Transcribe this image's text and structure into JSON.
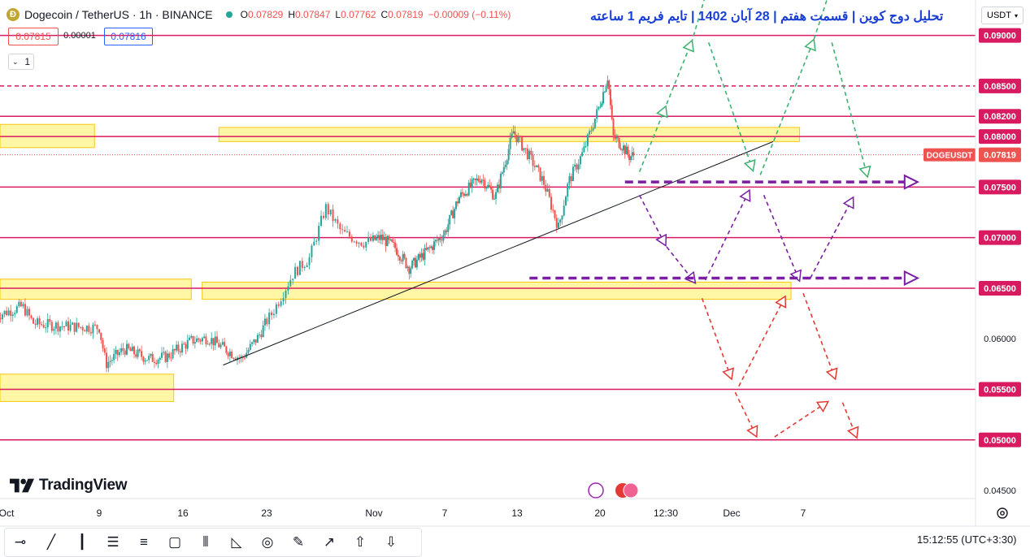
{
  "header": {
    "symbol": "Dogecoin",
    "pair": "/ TetherUS · 1h · BINANCE",
    "open_label": "O",
    "open": "0.07829",
    "high_label": "H",
    "high": "0.07847",
    "low_label": "L",
    "low": "0.07762",
    "close_label": "C",
    "close": "0.07819",
    "change": "−0.00009 (−0.11%)"
  },
  "quote": {
    "bid": "0.07815",
    "spread": "0.00001",
    "ask": "0.07816"
  },
  "layers_count": "1",
  "currency_button": "USDT",
  "annotation_title": "تحلیل دوج کوین | قسمت هفتم | 28 آبان 1402 | تایم فریم 1 ساعته",
  "brand": "TradingView",
  "status": {
    "time": "15:12:55",
    "timezone": "(UTC+3:30)"
  },
  "toolbar_tools": [
    "cross-line-tool",
    "trend-line-tool",
    "vertical-line-tool",
    "fib-tool",
    "parallel-channel-tool",
    "rectangle-tool",
    "pitchfork-tool",
    "triangle-tool",
    "circle-tool",
    "brush-tool",
    "arrow-tool",
    "arrow-up-tool",
    "arrow-down-tool"
  ],
  "colors": {
    "up": "#26a69a",
    "down": "#ef5350",
    "level": "#d81b60",
    "zone": "#fff176",
    "bull_path": "#3cb371",
    "bear_path": "#e53935",
    "mid_path": "#7b1fa2"
  },
  "chart_data": {
    "type": "candlestick",
    "symbol_tag": "DOGEUSDT",
    "last_price": 0.07819,
    "ylim": [
      0.0442,
      0.0935
    ],
    "price_ticks": [
      {
        "v": 0.09,
        "label": "0.09000",
        "hl": true
      },
      {
        "v": 0.085,
        "label": "0.08500",
        "hl": true
      },
      {
        "v": 0.082,
        "label": "0.08200",
        "hl": true
      },
      {
        "v": 0.08,
        "label": "0.08000",
        "hl": true
      },
      {
        "v": 0.075,
        "label": "0.07500",
        "hl": true
      },
      {
        "v": 0.07,
        "label": "0.07000",
        "hl": true
      },
      {
        "v": 0.065,
        "label": "0.06500",
        "hl": true
      },
      {
        "v": 0.06,
        "label": "0.06000",
        "hl": false
      },
      {
        "v": 0.055,
        "label": "0.05500",
        "hl": true
      },
      {
        "v": 0.05,
        "label": "0.05000",
        "hl": true
      },
      {
        "v": 0.045,
        "label": "0.04500",
        "hl": false
      }
    ],
    "time_ticks": [
      {
        "label": "Oct",
        "t": 0
      },
      {
        "label": "9",
        "t": 1
      },
      {
        "label": "16",
        "t": 2
      },
      {
        "label": "23",
        "t": 3
      },
      {
        "label": "Nov",
        "t": 4
      },
      {
        "label": "7",
        "t": 5
      },
      {
        "label": "13",
        "t": 6
      },
      {
        "label": "20",
        "t": 7
      },
      {
        "label": "12:30",
        "t": 8
      },
      {
        "label": "Dec",
        "t": 9
      },
      {
        "label": "7",
        "t": 10
      }
    ],
    "levels": [
      {
        "v": 0.09,
        "style": "solid"
      },
      {
        "v": 0.085,
        "style": "dashed"
      },
      {
        "v": 0.082,
        "style": "solid"
      },
      {
        "v": 0.08,
        "style": "solid"
      },
      {
        "v": 0.075,
        "style": "solid"
      },
      {
        "v": 0.07,
        "style": "solid"
      },
      {
        "v": 0.065,
        "style": "solid"
      },
      {
        "v": 0.055,
        "style": "solid"
      },
      {
        "v": 0.05,
        "style": "solid"
      }
    ],
    "zones": [
      {
        "t0": -0.2,
        "t1": 0.95,
        "v0": 0.0812,
        "v1": 0.0789
      },
      {
        "t0": 2.43,
        "t1": 9.95,
        "v0": 0.0809,
        "v1": 0.0795
      },
      {
        "t0": -0.2,
        "t1": 2.1,
        "v0": 0.0659,
        "v1": 0.0639
      },
      {
        "t0": 2.23,
        "t1": 9.83,
        "v0": 0.0656,
        "v1": 0.0639
      },
      {
        "t0": -0.2,
        "t1": 1.89,
        "v0": 0.0565,
        "v1": 0.0538
      }
    ],
    "trendline": {
      "t0": 2.48,
      "v0": 0.0574,
      "t1": 9.58,
      "v1": 0.0795
    },
    "price_path": [
      [
        -0.1,
        0.0623
      ],
      [
        0.18,
        0.0632
      ],
      [
        0.3,
        0.0615
      ],
      [
        0.7,
        0.0612
      ],
      [
        1.0,
        0.0611
      ],
      [
        1.08,
        0.0575
      ],
      [
        1.3,
        0.059
      ],
      [
        1.6,
        0.058
      ],
      [
        1.8,
        0.0582
      ],
      [
        2.1,
        0.0598
      ],
      [
        2.3,
        0.0601
      ],
      [
        2.5,
        0.059
      ],
      [
        2.7,
        0.058
      ],
      [
        2.9,
        0.0602
      ],
      [
        3.05,
        0.0625
      ],
      [
        3.25,
        0.0665
      ],
      [
        3.4,
        0.068
      ],
      [
        3.55,
        0.073
      ],
      [
        3.7,
        0.0705
      ],
      [
        3.9,
        0.0695
      ],
      [
        4.1,
        0.07
      ],
      [
        4.3,
        0.069
      ],
      [
        4.5,
        0.067
      ],
      [
        4.8,
        0.069
      ],
      [
        5.0,
        0.0705
      ],
      [
        5.2,
        0.074
      ],
      [
        5.5,
        0.076
      ],
      [
        5.7,
        0.074
      ],
      [
        5.95,
        0.0805
      ],
      [
        6.15,
        0.078
      ],
      [
        6.32,
        0.0755
      ],
      [
        6.5,
        0.071
      ],
      [
        6.62,
        0.0755
      ],
      [
        6.8,
        0.0785
      ],
      [
        7.0,
        0.0832
      ],
      [
        7.12,
        0.086
      ],
      [
        7.2,
        0.08
      ],
      [
        7.35,
        0.079
      ],
      [
        7.45,
        0.078
      ],
      [
        7.52,
        0.0782
      ]
    ],
    "paths": [
      {
        "color": "bull",
        "pts": [
          [
            7.6,
            0.0765
          ],
          [
            8.0,
            0.083
          ],
          [
            8.4,
            0.0895
          ],
          [
            8.65,
            0.095
          ]
        ]
      },
      {
        "color": "bull",
        "pts": [
          [
            8.65,
            0.0893
          ],
          [
            9.3,
            0.0766
          ]
        ]
      },
      {
        "color": "bull",
        "pts": [
          [
            9.4,
            0.0762
          ],
          [
            10.15,
            0.0896
          ],
          [
            10.4,
            0.095
          ]
        ]
      },
      {
        "color": "bull",
        "pts": [
          [
            10.4,
            0.0893
          ],
          [
            10.9,
            0.076
          ]
        ]
      },
      {
        "color": "mid",
        "pts": [
          [
            7.6,
            0.0742
          ],
          [
            8.0,
            0.0692
          ],
          [
            8.45,
            0.0655
          ]
        ]
      },
      {
        "color": "mid",
        "pts": [
          [
            8.6,
            0.0658
          ],
          [
            9.25,
            0.0747
          ]
        ]
      },
      {
        "color": "mid",
        "pts": [
          [
            9.45,
            0.0742
          ],
          [
            9.95,
            0.0657
          ]
        ]
      },
      {
        "color": "mid",
        "pts": [
          [
            10.1,
            0.066
          ],
          [
            10.7,
            0.074
          ]
        ]
      },
      {
        "color": "bear",
        "pts": [
          [
            8.55,
            0.064
          ],
          [
            9.0,
            0.056
          ]
        ]
      },
      {
        "color": "bear",
        "pts": [
          [
            9.1,
            0.0553
          ],
          [
            9.75,
            0.0642
          ]
        ]
      },
      {
        "color": "bear",
        "pts": [
          [
            10.0,
            0.0645
          ],
          [
            10.45,
            0.056
          ]
        ]
      },
      {
        "color": "bear",
        "pts": [
          [
            9.05,
            0.0547
          ],
          [
            9.35,
            0.0503
          ]
        ]
      },
      {
        "color": "bear",
        "pts": [
          [
            9.6,
            0.0503
          ],
          [
            10.35,
            0.0538
          ]
        ]
      },
      {
        "color": "bear",
        "pts": [
          [
            10.55,
            0.0537
          ],
          [
            10.75,
            0.0502
          ]
        ]
      }
    ],
    "purple_arrows": [
      {
        "t0": 7.38,
        "t1": 11.6,
        "v": 0.0755
      },
      {
        "t0": 6.15,
        "t1": 11.6,
        "v": 0.066
      }
    ]
  }
}
